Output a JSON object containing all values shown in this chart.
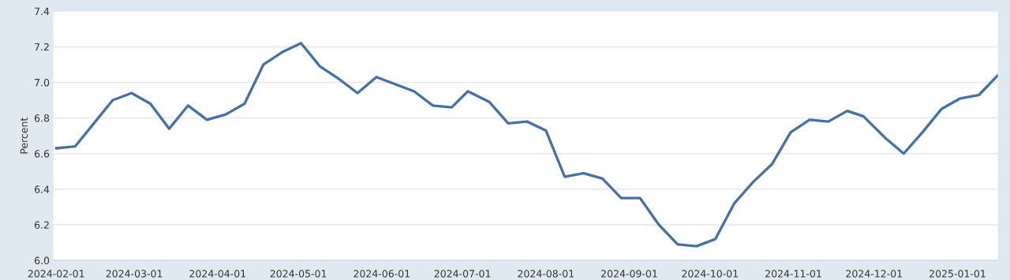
{
  "chart_data": {
    "type": "line",
    "ylabel": "Percent",
    "x": [
      "2024-02-01",
      "2024-02-08",
      "2024-02-15",
      "2024-02-22",
      "2024-02-29",
      "2024-03-07",
      "2024-03-14",
      "2024-03-21",
      "2024-03-28",
      "2024-04-04",
      "2024-04-11",
      "2024-04-18",
      "2024-04-25",
      "2024-05-02",
      "2024-05-09",
      "2024-05-16",
      "2024-05-23",
      "2024-05-30",
      "2024-06-06",
      "2024-06-13",
      "2024-06-20",
      "2024-06-27",
      "2024-07-03",
      "2024-07-11",
      "2024-07-18",
      "2024-07-25",
      "2024-08-01",
      "2024-08-08",
      "2024-08-15",
      "2024-08-22",
      "2024-08-29",
      "2024-09-05",
      "2024-09-12",
      "2024-09-19",
      "2024-09-26",
      "2024-10-03",
      "2024-10-10",
      "2024-10-17",
      "2024-10-24",
      "2024-10-31",
      "2024-11-07",
      "2024-11-14",
      "2024-11-21",
      "2024-11-27",
      "2024-12-05",
      "2024-12-12",
      "2024-12-19",
      "2024-12-26",
      "2025-01-02",
      "2025-01-09",
      "2025-01-16"
    ],
    "series": [
      {
        "color": "#4572a7",
        "values": [
          6.63,
          6.64,
          6.77,
          6.9,
          6.94,
          6.88,
          6.74,
          6.87,
          6.79,
          6.82,
          6.88,
          7.1,
          7.17,
          7.22,
          7.09,
          7.02,
          6.94,
          7.03,
          6.99,
          6.95,
          6.87,
          6.86,
          6.95,
          6.89,
          6.77,
          6.78,
          6.73,
          6.47,
          6.49,
          6.46,
          6.35,
          6.35,
          6.2,
          6.09,
          6.08,
          6.12,
          6.32,
          6.44,
          6.54,
          6.72,
          6.79,
          6.78,
          6.84,
          6.81,
          6.69,
          6.6,
          6.72,
          6.85,
          6.91,
          6.93,
          7.04
        ]
      }
    ],
    "xlim": [
      "2024-01-31",
      "2025-01-16"
    ],
    "xticks": [
      "2024-02-01",
      "2024-03-01",
      "2024-04-01",
      "2024-05-01",
      "2024-06-01",
      "2024-07-01",
      "2024-08-01",
      "2024-09-01",
      "2024-10-01",
      "2024-11-01",
      "2024-12-01",
      "2025-01-01"
    ],
    "ylim": [
      6.0,
      7.4
    ],
    "yticks": [
      {
        "value": 6.0,
        "label": "6.0"
      },
      {
        "value": 6.2,
        "label": "6.2"
      },
      {
        "value": 6.4,
        "label": "6.4"
      },
      {
        "value": 6.6,
        "label": "6.6"
      },
      {
        "value": 6.8,
        "label": "6.8"
      },
      {
        "value": 7.0,
        "label": "7.0"
      },
      {
        "value": 7.2,
        "label": "7.2"
      },
      {
        "value": 7.4,
        "label": "7.4"
      }
    ],
    "grid": "y",
    "marker": "none",
    "line_style": "solid"
  }
}
